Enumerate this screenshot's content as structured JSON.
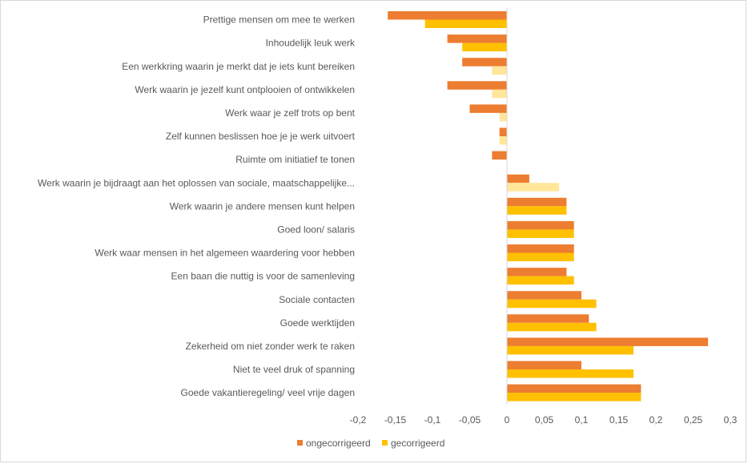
{
  "chart_data": {
    "type": "bar",
    "orientation": "horizontal",
    "categories": [
      "Prettige mensen om mee te werken",
      "Inhoudelijk leuk werk",
      "Een werkkring waarin je merkt dat je iets kunt bereiken",
      "Werk waarin je jezelf kunt ontplooien of ontwikkelen",
      "Werk waar je zelf trots op bent",
      "Zelf kunnen beslissen hoe je je werk uitvoert",
      "Ruimte om initiatief te tonen",
      "Werk waarin je bijdraagt aan het oplossen van sociale, maatschappelijke...",
      "Werk waarin je andere mensen kunt helpen",
      "Goed loon/ salaris",
      "Werk waar mensen in het algemeen waardering voor hebben",
      "Een baan die nuttig is voor de samenleving",
      "Sociale contacten",
      "Goede werktijden",
      "Zekerheid om niet zonder werk te raken",
      "Niet te veel druk of spanning",
      "Goede vakantieregeling/ veel vrije dagen"
    ],
    "series": [
      {
        "name": "ongecorrigeerd",
        "color": "#ed7d31",
        "values": [
          -0.16,
          -0.08,
          -0.06,
          -0.08,
          -0.05,
          -0.01,
          -0.02,
          0.03,
          0.08,
          0.09,
          0.09,
          0.08,
          0.1,
          0.11,
          0.27,
          0.1,
          0.18
        ]
      },
      {
        "name": "gecorrigeerd",
        "color": "#ffc000",
        "values": [
          -0.11,
          -0.06,
          -0.02,
          -0.02,
          -0.01,
          -0.01,
          0.0,
          0.07,
          0.08,
          0.09,
          0.09,
          0.09,
          0.12,
          0.12,
          0.17,
          0.17,
          0.18
        ]
      }
    ],
    "faded_bars": [
      {
        "category_index": 2,
        "series_index": 1
      },
      {
        "category_index": 3,
        "series_index": 1
      },
      {
        "category_index": 4,
        "series_index": 1
      },
      {
        "category_index": 5,
        "series_index": 1
      },
      {
        "category_index": 7,
        "series_index": 1
      }
    ],
    "faded_color": "#ffe699",
    "xlim": [
      -0.2,
      0.3
    ],
    "ticks": [
      -0.2,
      -0.15,
      -0.1,
      -0.05,
      0,
      0.05,
      0.1,
      0.15,
      0.2,
      0.25,
      0.3
    ],
    "tick_labels": [
      "-0,2",
      "-0,15",
      "-0,1",
      "-0,05",
      "0",
      "0,05",
      "0,1",
      "0,15",
      "0,2",
      "0,25",
      "0,3"
    ],
    "grid": false,
    "legend": "bottom-left",
    "title": "",
    "xlabel": "",
    "ylabel": ""
  }
}
